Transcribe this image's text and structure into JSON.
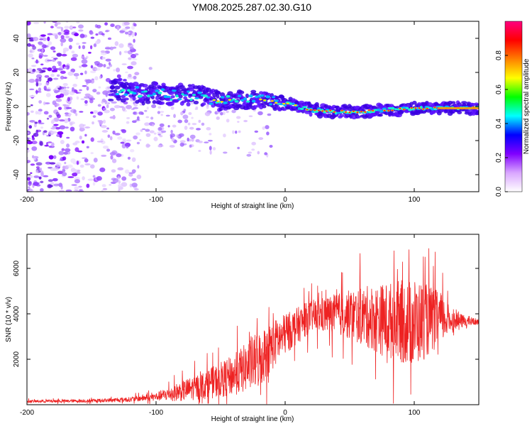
{
  "title": "YM08.2025.287.02.30.G10",
  "chart_data": [
    {
      "type": "heatmap",
      "xlabel": "Height of straight line (km)",
      "ylabel": "Frequency (Hz)",
      "xlim": [
        -200,
        150
      ],
      "ylim": [
        -50,
        50
      ],
      "xticks": [
        -200,
        -100,
        0,
        100
      ],
      "yticks": [
        -40,
        -20,
        0,
        20,
        40
      ],
      "colorbar": {
        "label": "Normalized spectral amplitude",
        "range": [
          0,
          1
        ],
        "ticks": [
          0,
          0.2,
          0.4,
          0.6,
          0.8
        ],
        "tick_labels": [
          "0.0",
          "0.2",
          "0.4",
          "0.6",
          "0.8"
        ],
        "colors": [
          "#ffffff",
          "#d9a6ff",
          "#8000ff",
          "#0000ff",
          "#00ffff",
          "#00ff00",
          "#ffff00",
          "#ff8000",
          "#ff0000",
          "#ff0080"
        ]
      },
      "ridge": {
        "description_points_x": [
          -130,
          -110,
          -90,
          -70,
          -50,
          -35,
          -20,
          0,
          20,
          40,
          60,
          80,
          100,
          120,
          150
        ],
        "description_points_y": [
          10,
          8,
          7,
          7,
          3,
          4,
          4,
          2,
          -2,
          -3,
          -3,
          -2,
          -1,
          -1,
          -1
        ]
      }
    },
    {
      "type": "line",
      "xlabel": "Height of straight line (km)",
      "ylabel": "SNR (10 * v/v)",
      "xlim": [
        -200,
        150
      ],
      "ylim": [
        0,
        7500
      ],
      "xticks": [
        -200,
        -100,
        0,
        100
      ],
      "yticks": [
        2000,
        4000,
        6000
      ],
      "series": [
        {
          "name": "SNR",
          "color": "#ee2222",
          "envelope_x": [
            -200,
            -150,
            -120,
            -100,
            -80,
            -60,
            -40,
            -20,
            -10,
            0,
            20,
            40,
            60,
            80,
            100,
            120,
            130,
            150
          ],
          "envelope_mean": [
            150,
            170,
            230,
            350,
            600,
            900,
            1300,
            2000,
            2600,
            3100,
            3900,
            4000,
            3900,
            3700,
            3600,
            3800,
            3700,
            3650
          ],
          "envelope_spread": [
            60,
            70,
            110,
            180,
            450,
            650,
            900,
            1300,
            1100,
            900,
            700,
            900,
            1300,
            1700,
            2000,
            1200,
            400,
            120
          ]
        }
      ]
    }
  ]
}
